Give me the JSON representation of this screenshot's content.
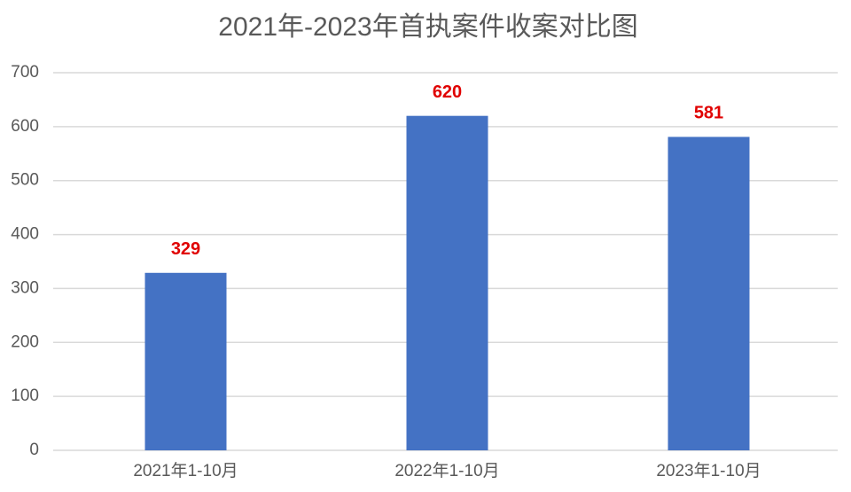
{
  "chart_data": {
    "type": "bar",
    "title": "2021年-2023年首执案件收案对比图",
    "categories": [
      "2021年1-10月",
      "2022年1-10月",
      "2023年1-10月"
    ],
    "values": [
      329,
      620,
      581
    ],
    "color": "#4472c4",
    "label_color": "#e00000",
    "ylim": [
      0,
      700
    ],
    "yticks": [
      0,
      100,
      200,
      300,
      400,
      500,
      600,
      700
    ],
    "grid": true
  }
}
